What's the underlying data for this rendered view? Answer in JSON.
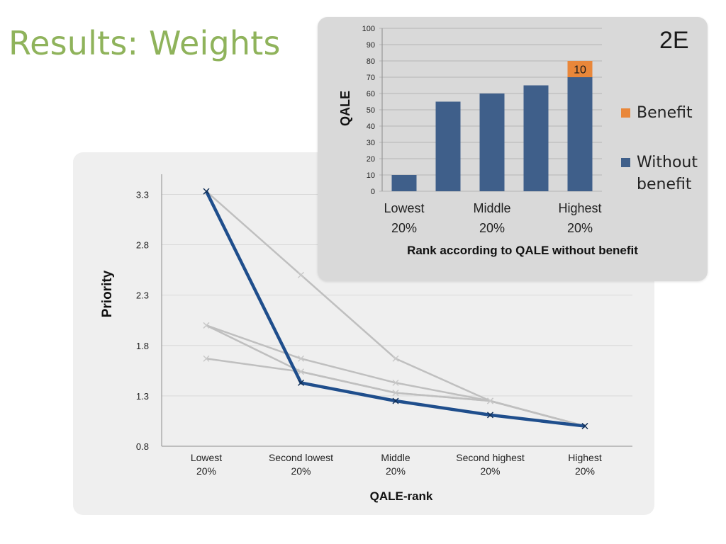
{
  "slide": {
    "title": "Results: Weights"
  },
  "panel_tag": "2E",
  "colors": {
    "title": "#8fb35b",
    "highlight_series": "#1f4e8c",
    "other_series": "#bfbfbf",
    "bar_base": "#3f5f8a",
    "bar_benefit": "#e9873a"
  },
  "chart_data": [
    {
      "type": "line",
      "xlabel": "QALE-rank",
      "ylabel": "Priority",
      "categories": [
        "Lowest 20%",
        "Second lowest 20%",
        "Middle 20%",
        "Second highest 20%",
        "Highest 20%"
      ],
      "category_lines": [
        [
          "Lowest",
          "20%"
        ],
        [
          "Second lowest",
          "20%"
        ],
        [
          "Middle",
          "20%"
        ],
        [
          "Second highest",
          "20%"
        ],
        [
          "Highest",
          "20%"
        ]
      ],
      "ylim": [
        0.8,
        3.5
      ],
      "yticks": [
        "0.8",
        "1.3",
        "1.8",
        "2.3",
        "2.8",
        "3.3"
      ],
      "grid": true,
      "series": [
        {
          "highlight": true,
          "values": [
            3.33,
            1.43,
            1.25,
            1.11,
            1.0
          ]
        },
        {
          "highlight": false,
          "values": [
            3.33,
            2.5,
            1.67,
            1.25,
            1.0
          ]
        },
        {
          "highlight": false,
          "values": [
            2.0,
            1.67,
            1.43,
            1.25,
            1.0
          ]
        },
        {
          "highlight": false,
          "values": [
            2.0,
            1.54,
            1.33,
            1.25,
            1.0
          ]
        },
        {
          "highlight": false,
          "values": [
            1.67,
            1.54,
            1.33,
            1.25,
            1.0
          ]
        }
      ]
    },
    {
      "type": "bar",
      "stacked": true,
      "xlabel": "Rank  according to QALE without benefit",
      "ylabel": "QALE",
      "category_labels": [
        [
          "Lowest",
          "20%"
        ],
        [
          "Middle",
          "20%"
        ],
        [
          "Highest",
          "20%"
        ]
      ],
      "ylim": [
        0,
        100
      ],
      "yticks": [
        "0",
        "10",
        "20",
        "30",
        "40",
        "50",
        "60",
        "70",
        "80",
        "90",
        "100"
      ],
      "grid": true,
      "legend": [
        "Benefit",
        "Without benefit"
      ],
      "series": [
        {
          "name": "Without benefit",
          "values": [
            10,
            55,
            60,
            65,
            70
          ]
        },
        {
          "name": "Benefit",
          "values": [
            0,
            0,
            0,
            0,
            10
          ]
        }
      ],
      "data_labels": [
        "10"
      ]
    }
  ]
}
